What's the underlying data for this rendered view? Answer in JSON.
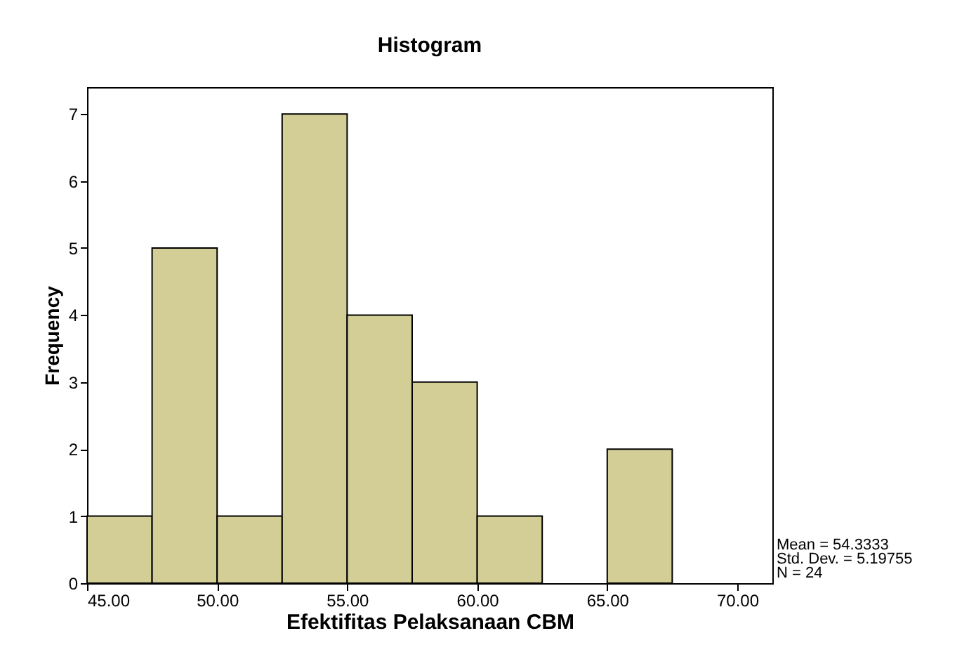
{
  "chart_data": {
    "type": "histogram",
    "title": "Histogram",
    "xlabel": "Efektifitas Pelaksanaan CBM",
    "ylabel": "Frequency",
    "bins": [
      45,
      47.5,
      50,
      52.5,
      55,
      57.5,
      60,
      62.5,
      65,
      67.5,
      70
    ],
    "values": [
      1,
      5,
      1,
      7,
      4,
      3,
      1,
      0,
      2,
      0
    ],
    "color": "#d3cd96",
    "xlim": [
      45,
      71.35
    ],
    "ylim": [
      0,
      7.4
    ],
    "xticks": [
      {
        "value": 45,
        "label": "45.00"
      },
      {
        "value": 50,
        "label": "50.00"
      },
      {
        "value": 55,
        "label": "55.00"
      },
      {
        "value": 60,
        "label": "60.00"
      },
      {
        "value": 65,
        "label": "65.00"
      },
      {
        "value": 70,
        "label": "70.00"
      }
    ],
    "yticks": [
      0,
      1,
      2,
      3,
      4,
      5,
      6,
      7
    ],
    "grid": false,
    "annotations": [
      "Mean = 54.3333",
      "Std. Dev. = 5.19755",
      "N = 24"
    ]
  }
}
